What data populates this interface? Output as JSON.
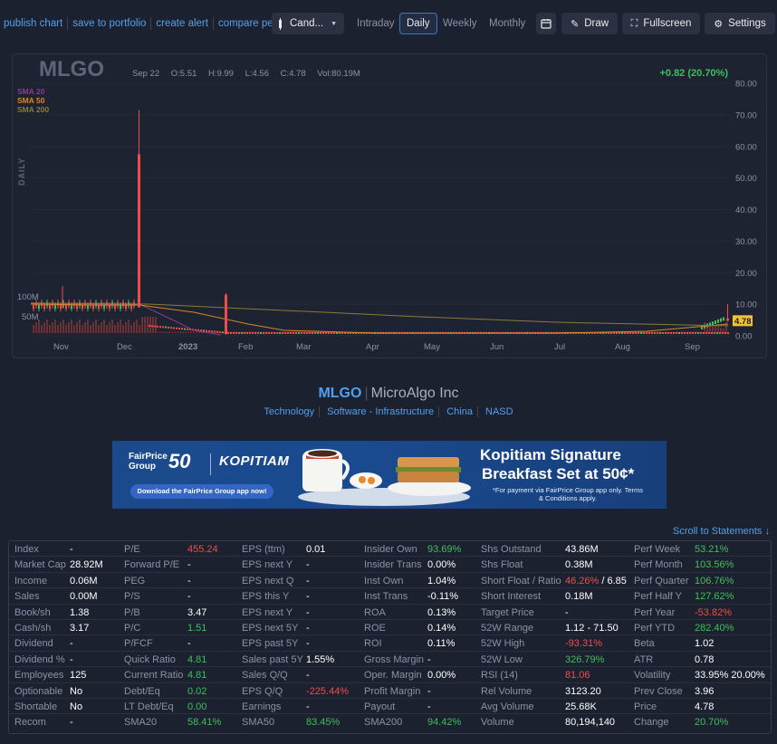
{
  "toolbar": {
    "links": [
      "publish chart",
      "save to portfolio",
      "create alert",
      "compare perf."
    ],
    "chart_type": "Cand...",
    "timeframes": [
      "Intraday",
      "Daily",
      "Weekly",
      "Monthly"
    ],
    "active_timeframe": "Daily",
    "draw_label": "Draw",
    "fullscreen_label": "Fullscreen",
    "settings_label": "Settings"
  },
  "chart": {
    "ticker": "MLGO",
    "date": "Sep 22",
    "open": "O:5.51",
    "high": "H:9.99",
    "low": "L:4.56",
    "close": "C:4.78",
    "volume": "Vol:80.19M",
    "change": "+0.82 (20.70%)",
    "sma": [
      {
        "label": "SMA 20",
        "color": "#8c3a8f"
      },
      {
        "label": "SMA 50",
        "color": "#d9862a"
      },
      {
        "label": "SMA 200",
        "color": "#8a7a3a"
      }
    ],
    "period_label": "DAILY",
    "price_label": "4.78"
  },
  "chart_data": {
    "type": "candlestick",
    "y_ticks": [
      "80.00",
      "70.00",
      "60.00",
      "50.00",
      "40.00",
      "30.00",
      "20.00",
      "10.00",
      "0.00"
    ],
    "ylim": [
      0,
      80
    ],
    "x_ticks": [
      "Nov",
      "Dec",
      "2023",
      "Feb",
      "Mar",
      "Apr",
      "May",
      "Jun",
      "Jul",
      "Aug",
      "Sep"
    ],
    "volume_ticks": [
      "100M",
      "50M"
    ],
    "spikes": [
      {
        "date": "Dec (mid)",
        "high": 71.5,
        "body_top": 57.5,
        "body_bottom": 9.0
      },
      {
        "date": "Feb (late Jan)",
        "high": 13.5,
        "body_top": 13.0,
        "body_bottom": 0.5
      },
      {
        "date": "Sep 22",
        "high": 9.99,
        "open": 5.51,
        "low": 4.56,
        "close": 4.78
      }
    ],
    "last_price": 4.78
  },
  "company": {
    "ticker": "MLGO",
    "name": "MicroAlgo Inc",
    "tags": [
      "Technology",
      "Software - Infrastructure",
      "China",
      "NASD"
    ]
  },
  "ad": {
    "brand1": "FairPrice Group",
    "brand_number": "50",
    "brand2": "KOPITIAM",
    "download_text": "Download the FairPrice Group app now!",
    "headline1": "Kopitiam Signature",
    "headline2": "Breakfast Set at 50¢*",
    "subtext": "*For payment via FairPrice Group app only. Terms & Conditions apply."
  },
  "scroll_link": "Scroll to Statements ↓",
  "stats": [
    [
      [
        "Index",
        "-",
        ""
      ],
      [
        "P/E",
        "455.24",
        "neg"
      ],
      [
        "EPS (ttm)",
        "0.01",
        ""
      ],
      [
        "Insider Own",
        "93.69%",
        "pos"
      ],
      [
        "Shs Outstand",
        "43.86M",
        ""
      ],
      [
        "Perf Week",
        "53.21%",
        "pos"
      ]
    ],
    [
      [
        "Market Cap",
        "28.92M",
        ""
      ],
      [
        "Forward P/E",
        "-",
        ""
      ],
      [
        "EPS next Y",
        "-",
        ""
      ],
      [
        "Insider Trans",
        "0.00%",
        ""
      ],
      [
        "Shs Float",
        "0.38M",
        ""
      ],
      [
        "Perf Month",
        "103.56%",
        "pos"
      ]
    ],
    [
      [
        "Income",
        "0.06M",
        ""
      ],
      [
        "PEG",
        "-",
        ""
      ],
      [
        "EPS next Q",
        "-",
        ""
      ],
      [
        "Inst Own",
        "1.04%",
        ""
      ],
      [
        "Short Float / Ratio",
        "46.26% / 6.85",
        "mixed"
      ],
      [
        "Perf Quarter",
        "106.76%",
        "pos"
      ]
    ],
    [
      [
        "Sales",
        "0.00M",
        ""
      ],
      [
        "P/S",
        "-",
        ""
      ],
      [
        "EPS this Y",
        "-",
        ""
      ],
      [
        "Inst Trans",
        "-0.11%",
        ""
      ],
      [
        "Short Interest",
        "0.18M",
        ""
      ],
      [
        "Perf Half Y",
        "127.62%",
        "pos"
      ]
    ],
    [
      [
        "Book/sh",
        "1.38",
        ""
      ],
      [
        "P/B",
        "3.47",
        ""
      ],
      [
        "EPS next Y",
        "-",
        ""
      ],
      [
        "ROA",
        "0.13%",
        ""
      ],
      [
        "Target Price",
        "-",
        ""
      ],
      [
        "Perf Year",
        "-53.82%",
        "neg"
      ]
    ],
    [
      [
        "Cash/sh",
        "3.17",
        ""
      ],
      [
        "P/C",
        "1.51",
        "pos"
      ],
      [
        "EPS next 5Y",
        "-",
        ""
      ],
      [
        "ROE",
        "0.14%",
        ""
      ],
      [
        "52W Range",
        "1.12 - 71.50",
        ""
      ],
      [
        "Perf YTD",
        "282.40%",
        "pos"
      ]
    ],
    [
      [
        "Dividend",
        "-",
        ""
      ],
      [
        "P/FCF",
        "-",
        ""
      ],
      [
        "EPS past 5Y",
        "-",
        ""
      ],
      [
        "ROI",
        "0.11%",
        ""
      ],
      [
        "52W High",
        "-93.31%",
        "neg"
      ],
      [
        "Beta",
        "1.02",
        ""
      ]
    ],
    [
      [
        "Dividend %",
        "-",
        ""
      ],
      [
        "Quick Ratio",
        "4.81",
        "pos"
      ],
      [
        "Sales past 5Y",
        "1.55%",
        ""
      ],
      [
        "Gross Margin",
        "-",
        ""
      ],
      [
        "52W Low",
        "326.79%",
        "pos"
      ],
      [
        "ATR",
        "0.78",
        ""
      ]
    ],
    [
      [
        "Employees",
        "125",
        ""
      ],
      [
        "Current Ratio",
        "4.81",
        "pos"
      ],
      [
        "Sales Q/Q",
        "-",
        ""
      ],
      [
        "Oper. Margin",
        "0.00%",
        ""
      ],
      [
        "RSI (14)",
        "81.06",
        "neg"
      ],
      [
        "Volatility",
        "33.95% 20.00%",
        ""
      ]
    ],
    [
      [
        "Optionable",
        "No",
        ""
      ],
      [
        "Debt/Eq",
        "0.02",
        "pos"
      ],
      [
        "EPS Q/Q",
        "-225.44%",
        "neg"
      ],
      [
        "Profit Margin",
        "-",
        ""
      ],
      [
        "Rel Volume",
        "3123.20",
        ""
      ],
      [
        "Prev Close",
        "3.96",
        ""
      ]
    ],
    [
      [
        "Shortable",
        "No",
        ""
      ],
      [
        "LT Debt/Eq",
        "0.00",
        "pos"
      ],
      [
        "Earnings",
        "-",
        ""
      ],
      [
        "Payout",
        "-",
        ""
      ],
      [
        "Avg Volume",
        "25.68K",
        ""
      ],
      [
        "Price",
        "4.78",
        ""
      ]
    ],
    [
      [
        "Recom",
        "-",
        ""
      ],
      [
        "SMA20",
        "58.41%",
        "pos"
      ],
      [
        "SMA50",
        "83.45%",
        "pos"
      ],
      [
        "SMA200",
        "94.42%",
        "pos"
      ],
      [
        "Volume",
        "80,194,140",
        ""
      ],
      [
        "Change",
        "20.70%",
        "pos"
      ]
    ]
  ]
}
